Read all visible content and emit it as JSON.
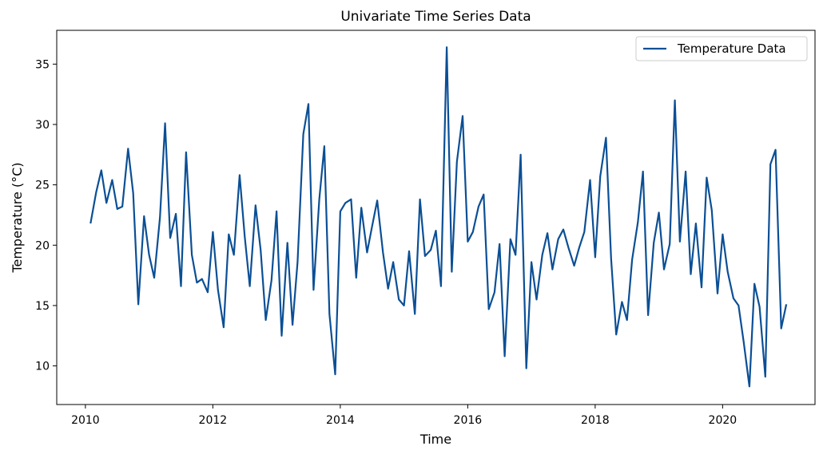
{
  "chart_data": {
    "type": "line",
    "title": "Univariate Time Series Data",
    "xlabel": "Time",
    "ylabel": "Temperature (°C)",
    "xlim": [
      2009.55,
      2021.45
    ],
    "ylim": [
      6.8,
      37.8
    ],
    "xticks": [
      2010,
      2012,
      2014,
      2016,
      2018,
      2020
    ],
    "yticks": [
      10,
      15,
      20,
      25,
      30,
      35
    ],
    "grid": false,
    "legend_position": "top-right",
    "series": [
      {
        "name": "Temperature Data",
        "color": "#0b4f95",
        "x": [
          2010.08,
          2010.17,
          2010.25,
          2010.33,
          2010.42,
          2010.5,
          2010.58,
          2010.67,
          2010.75,
          2010.83,
          2010.92,
          2011.0,
          2011.08,
          2011.17,
          2011.25,
          2011.33,
          2011.42,
          2011.5,
          2011.58,
          2011.67,
          2011.75,
          2011.83,
          2011.92,
          2012.0,
          2012.08,
          2012.17,
          2012.25,
          2012.33,
          2012.42,
          2012.5,
          2012.58,
          2012.67,
          2012.75,
          2012.83,
          2012.92,
          2013.0,
          2013.08,
          2013.17,
          2013.25,
          2013.33,
          2013.42,
          2013.5,
          2013.58,
          2013.67,
          2013.75,
          2013.83,
          2013.92,
          2014.0,
          2014.08,
          2014.17,
          2014.25,
          2014.33,
          2014.42,
          2014.5,
          2014.58,
          2014.67,
          2014.75,
          2014.83,
          2014.92,
          2015.0,
          2015.08,
          2015.17,
          2015.25,
          2015.33,
          2015.42,
          2015.5,
          2015.58,
          2015.67,
          2015.75,
          2015.83,
          2015.92,
          2016.0,
          2016.08,
          2016.17,
          2016.25,
          2016.33,
          2016.42,
          2016.5,
          2016.58,
          2016.67,
          2016.75,
          2016.83,
          2016.92,
          2017.0,
          2017.08,
          2017.17,
          2017.25,
          2017.33,
          2017.42,
          2017.5,
          2017.58,
          2017.67,
          2017.75,
          2017.83,
          2017.92,
          2018.0,
          2018.08,
          2018.17,
          2018.25,
          2018.33,
          2018.42,
          2018.5,
          2018.58,
          2018.67,
          2018.75,
          2018.83,
          2018.92,
          2019.0,
          2019.08,
          2019.17,
          2019.25,
          2019.33,
          2019.42,
          2019.5,
          2019.58,
          2019.67,
          2019.75,
          2019.83,
          2019.92,
          2020.0,
          2020.08,
          2020.17,
          2020.25,
          2020.33,
          2020.42,
          2020.5,
          2020.58,
          2020.67,
          2020.75,
          2020.83,
          2020.92,
          2021.0
        ],
        "y": [
          21.8,
          24.4,
          26.2,
          23.5,
          25.4,
          23.0,
          23.2,
          28.0,
          24.3,
          15.1,
          22.4,
          19.2,
          17.3,
          22.3,
          30.1,
          20.6,
          22.6,
          16.6,
          27.7,
          19.2,
          16.9,
          17.2,
          16.1,
          21.1,
          16.3,
          13.2,
          20.9,
          19.2,
          25.8,
          20.7,
          16.6,
          23.3,
          19.6,
          13.8,
          17.1,
          22.8,
          12.5,
          20.2,
          13.4,
          18.6,
          29.2,
          31.7,
          16.3,
          23.8,
          28.2,
          14.3,
          9.3,
          22.8,
          23.5,
          23.8,
          17.3,
          23.1,
          19.4,
          21.6,
          23.7,
          19.4,
          16.4,
          18.6,
          15.5,
          15.0,
          19.5,
          14.3,
          23.8,
          19.1,
          19.6,
          21.2,
          16.6,
          36.4,
          17.8,
          26.9,
          30.7,
          20.3,
          21.1,
          23.2,
          24.2,
          14.7,
          16.1,
          20.1,
          10.8,
          20.5,
          19.2,
          27.5,
          9.8,
          18.6,
          15.5,
          19.2,
          21.0,
          18.0,
          20.5,
          21.3,
          19.8,
          18.3,
          19.8,
          21.1,
          25.4,
          19.0,
          25.7,
          28.9,
          18.9,
          12.6,
          15.3,
          13.8,
          18.8,
          21.9,
          26.1,
          14.2,
          20.2,
          22.7,
          18.0,
          20.1,
          32.0,
          20.3,
          26.1,
          17.6,
          21.8,
          16.5,
          25.6,
          22.9,
          16.0,
          20.9,
          17.8,
          15.6,
          15.0,
          12.0,
          8.3,
          16.8,
          14.9,
          9.1,
          26.7,
          27.9,
          13.1,
          15.1
        ]
      }
    ]
  }
}
